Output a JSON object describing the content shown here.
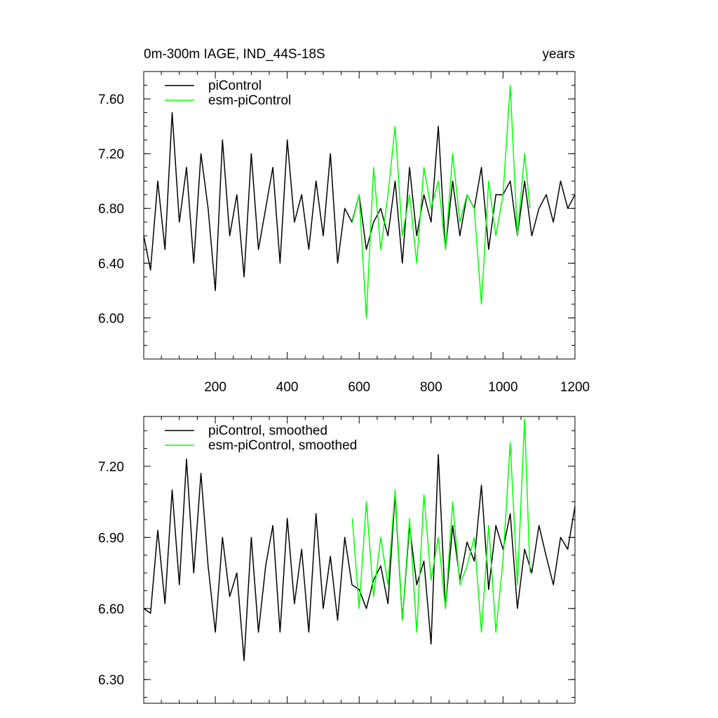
{
  "figure": {
    "title_left": "0m-300m IAGE, IND_44S-18S",
    "title_right": "years"
  },
  "chart_data": [
    {
      "type": "line",
      "title": "0m-300m IAGE, IND_44S-18S",
      "units": "years",
      "xlim": [
        1,
        1200
      ],
      "ylim": [
        5.7,
        7.8
      ],
      "x_ticks": [
        200,
        400,
        600,
        800,
        1000,
        1200
      ],
      "x_tick_labels": [
        "200",
        "400",
        "600",
        "800",
        "1000",
        "1200"
      ],
      "y_ticks": [
        6.0,
        6.4,
        6.8,
        7.2,
        7.6
      ],
      "y_tick_labels": [
        "6.00",
        "6.40",
        "6.80",
        "7.20",
        "7.60"
      ],
      "legend_position": "top-left",
      "grid": false,
      "series": [
        {
          "name": "piControl",
          "color": "#000000",
          "x": [
            1,
            20,
            40,
            60,
            80,
            100,
            120,
            140,
            160,
            180,
            200,
            220,
            240,
            260,
            280,
            300,
            320,
            340,
            360,
            380,
            400,
            420,
            440,
            460,
            480,
            500,
            520,
            540,
            560,
            580,
            600,
            620,
            640,
            660,
            680,
            700,
            720,
            740,
            760,
            780,
            800,
            820,
            840,
            860,
            880,
            900,
            920,
            940,
            960,
            980,
            1000,
            1020,
            1040,
            1060,
            1080,
            1100,
            1120,
            1140,
            1160,
            1180,
            1200
          ],
          "y": [
            6.6,
            6.35,
            7.0,
            6.5,
            7.5,
            6.7,
            7.1,
            6.4,
            7.2,
            6.8,
            6.2,
            7.3,
            6.6,
            6.9,
            6.3,
            7.2,
            6.5,
            6.8,
            7.1,
            6.4,
            7.3,
            6.7,
            6.9,
            6.5,
            7.0,
            6.6,
            7.2,
            6.4,
            6.8,
            6.7,
            6.9,
            6.5,
            6.7,
            6.8,
            6.6,
            7.0,
            6.4,
            7.1,
            6.6,
            6.9,
            6.7,
            7.4,
            6.5,
            7.0,
            6.6,
            6.9,
            6.8,
            7.1,
            6.5,
            6.9,
            6.9,
            7.0,
            6.6,
            7.0,
            6.6,
            6.8,
            6.9,
            6.7,
            7.0,
            6.8,
            6.9
          ]
        },
        {
          "name": "esm-piControl",
          "color": "#00ff00",
          "x": [
            581,
            600,
            620,
            640,
            660,
            680,
            700,
            720,
            740,
            760,
            780,
            800,
            820,
            840,
            860,
            880,
            900,
            920,
            940,
            960,
            980,
            1000,
            1020,
            1040,
            1060,
            1075
          ],
          "y": [
            6.7,
            6.9,
            6.0,
            7.1,
            6.5,
            6.9,
            7.4,
            6.6,
            6.9,
            6.4,
            7.1,
            6.8,
            7.0,
            6.5,
            7.2,
            6.7,
            6.9,
            6.8,
            6.1,
            7.0,
            6.6,
            6.9,
            7.7,
            6.6,
            7.2,
            6.8
          ]
        }
      ]
    },
    {
      "type": "line",
      "xlim": [
        1,
        1200
      ],
      "ylim": [
        6.2,
        7.41
      ],
      "x_ticks": [
        200,
        400,
        600,
        800,
        1000,
        1200
      ],
      "y_ticks": [
        6.3,
        6.6,
        6.9,
        7.2
      ],
      "y_tick_labels": [
        "6.30",
        "6.60",
        "6.90",
        "7.20"
      ],
      "legend_position": "top-left",
      "grid": false,
      "series": [
        {
          "name": "piControl, smoothed",
          "color": "#000000",
          "x": [
            1,
            20,
            40,
            60,
            80,
            100,
            120,
            140,
            160,
            180,
            200,
            220,
            240,
            260,
            280,
            300,
            320,
            340,
            360,
            380,
            400,
            420,
            440,
            460,
            480,
            500,
            520,
            540,
            560,
            580,
            600,
            620,
            640,
            660,
            680,
            700,
            720,
            740,
            760,
            780,
            800,
            820,
            840,
            860,
            880,
            900,
            920,
            940,
            960,
            980,
            1000,
            1020,
            1040,
            1060,
            1080,
            1100,
            1120,
            1140,
            1160,
            1180,
            1200
          ],
          "y": [
            6.6,
            6.58,
            6.93,
            6.62,
            7.1,
            6.7,
            7.23,
            6.75,
            7.17,
            6.78,
            6.5,
            6.9,
            6.65,
            6.75,
            6.38,
            6.9,
            6.5,
            6.78,
            6.95,
            6.5,
            6.98,
            6.62,
            6.85,
            6.5,
            7.0,
            6.6,
            6.82,
            6.55,
            6.9,
            6.7,
            6.68,
            6.6,
            6.72,
            6.78,
            6.62,
            7.08,
            6.55,
            6.95,
            6.7,
            6.8,
            6.45,
            7.25,
            6.6,
            6.95,
            6.72,
            6.88,
            6.8,
            7.12,
            6.68,
            6.95,
            6.85,
            7.0,
            6.6,
            6.85,
            6.75,
            6.95,
            6.82,
            6.7,
            6.9,
            6.85,
            7.03
          ]
        },
        {
          "name": "esm-piControl, smoothed",
          "color": "#00ff00",
          "x": [
            581,
            600,
            620,
            640,
            660,
            680,
            700,
            720,
            740,
            760,
            780,
            800,
            820,
            840,
            860,
            880,
            900,
            920,
            940,
            960,
            980,
            1000,
            1020,
            1040,
            1060,
            1075
          ],
          "y": [
            6.98,
            6.6,
            7.05,
            6.65,
            6.9,
            6.7,
            7.1,
            6.55,
            6.98,
            6.5,
            7.08,
            6.72,
            6.9,
            6.6,
            7.05,
            6.7,
            6.78,
            6.9,
            6.5,
            6.95,
            6.5,
            6.8,
            7.3,
            6.7,
            7.4,
            6.75
          ]
        }
      ]
    }
  ]
}
